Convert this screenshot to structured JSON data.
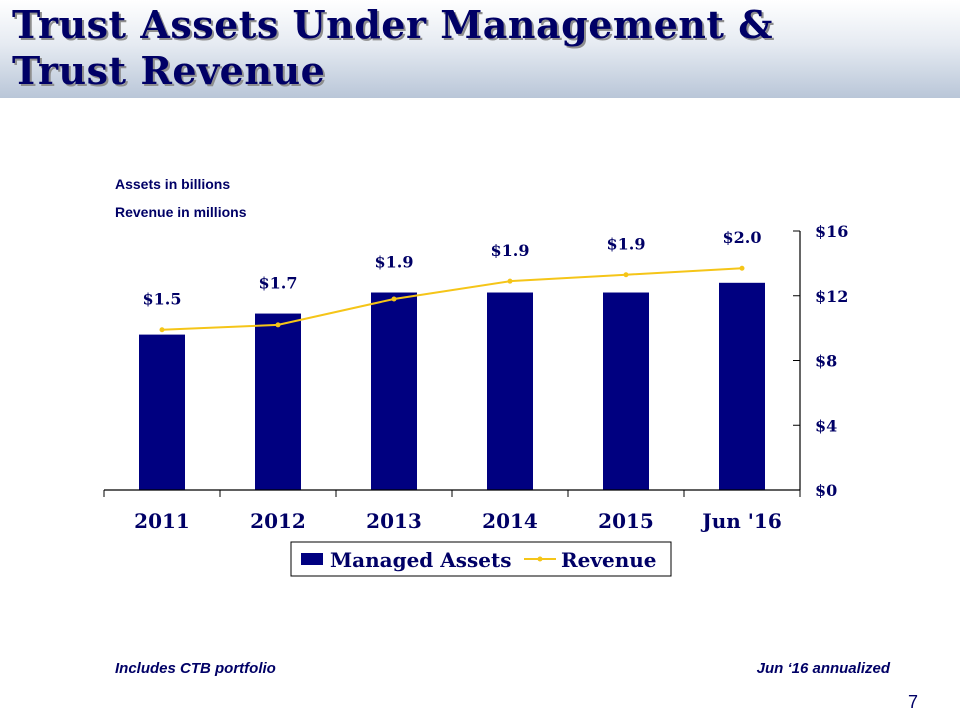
{
  "slide": {
    "title_line1": "Trust Assets Under Management &",
    "title_line2": "Trust Revenue",
    "note_assets": "Assets in billions",
    "note_revenue": "Revenue in millions",
    "footnote_left": "Includes CTB portfolio",
    "footnote_right": "Jun ‘16 annualized",
    "page_number": "7"
  },
  "colors": {
    "bars": "#000080",
    "line": "#f5c518",
    "text": "#000066"
  },
  "chart_data": {
    "type": "bar",
    "categories": [
      "2011",
      "2012",
      "2013",
      "2014",
      "2015",
      "Jun '16"
    ],
    "series": [
      {
        "name": "Managed Assets",
        "type": "bar",
        "values": [
          9.6,
          10.9,
          12.2,
          12.2,
          12.2,
          12.8
        ]
      },
      {
        "name": "Revenue",
        "type": "line",
        "values": [
          9.9,
          10.2,
          11.8,
          12.9,
          13.3,
          13.7
        ],
        "labels": [
          "$1.5",
          "$1.7",
          "$1.9",
          "$1.9",
          "$1.9",
          "$2.0"
        ]
      }
    ],
    "y_axis": {
      "position": "right",
      "range": [
        0,
        16
      ],
      "ticks": [
        0,
        4,
        8,
        12,
        16
      ],
      "tick_labels": [
        "$0",
        "$4",
        "$8",
        "$12",
        "$16"
      ]
    },
    "legend": {
      "position": "bottom",
      "entries": [
        "Managed Assets",
        "Revenue"
      ]
    },
    "grid": false
  }
}
